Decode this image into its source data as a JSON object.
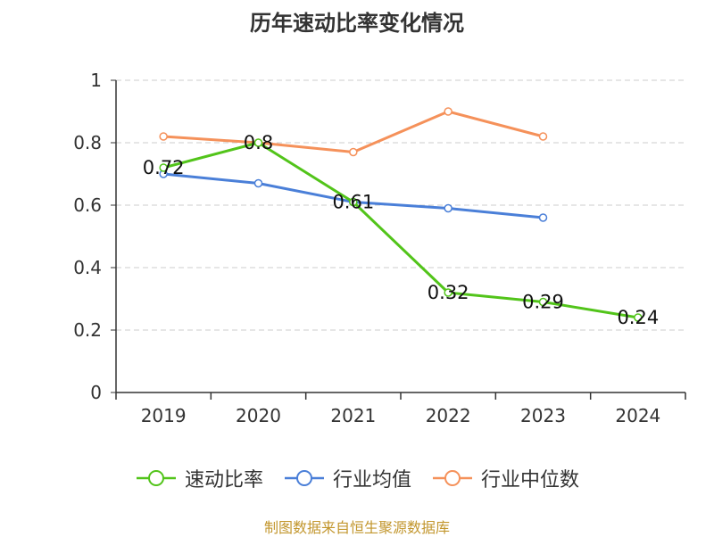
{
  "chart_data": {
    "type": "line",
    "title": "历年速动比率变化情况",
    "categories": [
      "2019",
      "2020",
      "2021",
      "2022",
      "2023",
      "2024"
    ],
    "ylim": [
      0,
      1
    ],
    "yticks": [
      "0",
      "0.2",
      "0.4",
      "0.6",
      "0.8",
      "1"
    ],
    "grid": true,
    "legend_position": "bottom",
    "series": [
      {
        "name": "速动比率",
        "color": "#52c41a",
        "values": [
          0.72,
          0.8,
          0.61,
          0.32,
          0.29,
          0.24
        ],
        "labels": [
          "0.72",
          "0.8",
          "0.61",
          "0.32",
          "0.29",
          "0.24"
        ]
      },
      {
        "name": "行业均值",
        "color": "#4a7fd8",
        "values": [
          0.7,
          0.67,
          0.61,
          0.59,
          0.56,
          null
        ]
      },
      {
        "name": "行业中位数",
        "color": "#f5915a",
        "values": [
          0.82,
          0.8,
          0.77,
          0.9,
          0.82,
          null
        ]
      }
    ]
  },
  "footer": "制图数据来自恒生聚源数据库"
}
